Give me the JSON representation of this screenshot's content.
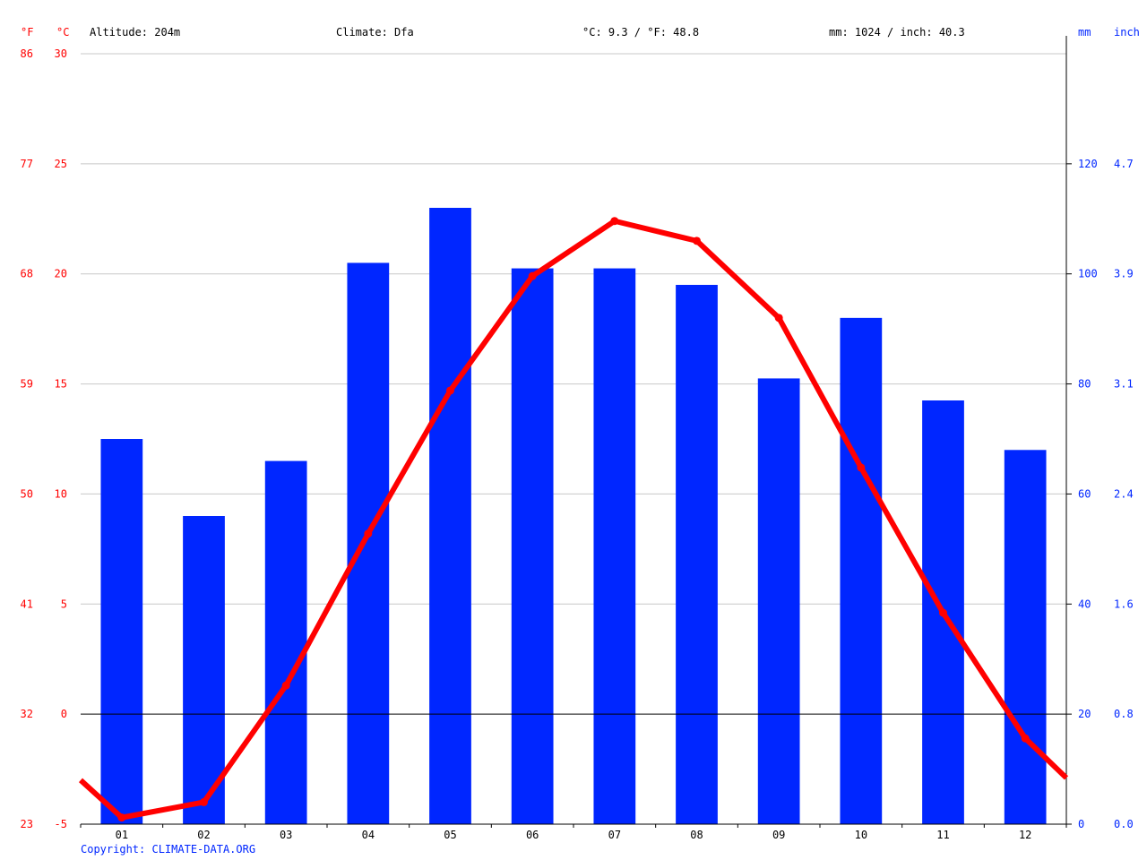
{
  "header": {
    "unit_f": "°F",
    "unit_c": "°C",
    "altitude": "Altitude: 204m",
    "climate": "Climate: Dfa",
    "temp_avg": "°C: 9.3 / °F: 48.8",
    "precip_total": "mm: 1024 / inch: 40.3",
    "unit_mm": "mm",
    "unit_inch": "inch"
  },
  "footer": {
    "copyright": "Copyright: CLIMATE-DATA.ORG"
  },
  "colors": {
    "temperature": "#ff0000",
    "precipitation": "#0026ff",
    "grid": "#c8c8c8",
    "axis": "#000000",
    "left_labels": "#ff0000",
    "right_labels": "#0026ff"
  },
  "chart_data": {
    "type": "bar",
    "categories": [
      "01",
      "02",
      "03",
      "04",
      "05",
      "06",
      "07",
      "08",
      "09",
      "10",
      "11",
      "12"
    ],
    "series": [
      {
        "type": "bar",
        "axis": "right",
        "unit": "mm",
        "values": [
          70,
          56,
          66,
          102,
          112,
          101,
          101,
          98,
          81,
          92,
          77,
          68
        ]
      },
      {
        "type": "line",
        "axis": "left",
        "unit": "°C",
        "values": [
          -4.7,
          -4.0,
          1.3,
          8.2,
          14.7,
          19.9,
          22.4,
          21.5,
          18.0,
          11.2,
          4.6,
          -1.1
        ],
        "edge_left": -3.0,
        "edge_right": -2.9
      }
    ],
    "axes": {
      "left_c": {
        "ylim": [
          -5,
          30
        ],
        "ticks": [
          "-5",
          "0",
          "5",
          "10",
          "15",
          "20",
          "25",
          "30"
        ]
      },
      "left_f": {
        "ticks": [
          "23",
          "32",
          "41",
          "50",
          "59",
          "68",
          "77",
          "86"
        ]
      },
      "right_mm": {
        "ylim": [
          0,
          140
        ],
        "ticks": [
          "0",
          "20",
          "40",
          "60",
          "80",
          "100",
          "120"
        ]
      },
      "right_inch": {
        "ticks": [
          "0.0",
          "0.8",
          "1.6",
          "2.4",
          "3.1",
          "3.9",
          "4.7"
        ]
      }
    },
    "grid": true
  }
}
